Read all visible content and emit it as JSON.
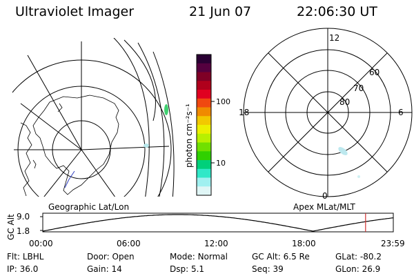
{
  "header": {
    "instrument": "Ultraviolet Imager",
    "date": "21 Jun 07",
    "time": "22:06:30 UT"
  },
  "colorbar": {
    "unit_label": "photon cm⁻²s⁻¹",
    "ticks": [
      "100",
      "10"
    ],
    "colors": [
      "#2a0033",
      "#55003f",
      "#7f0026",
      "#b0001c",
      "#e00020",
      "#f04810",
      "#f08a00",
      "#f2c800",
      "#ecf000",
      "#b8f000",
      "#70e000",
      "#30d000",
      "#00d07a",
      "#30e8c8",
      "#a0f0f0",
      "#e0f6f6"
    ]
  },
  "polar_plot": {
    "mlt_labels": [
      "12",
      "18",
      "6",
      "0"
    ],
    "lat_labels": [
      "60",
      "70",
      "80"
    ]
  },
  "map_labels": {
    "left": "Geographic Lat/Lon",
    "right": "Apex MLat/MLT"
  },
  "altitude_plot": {
    "ylabel": "GC Alt",
    "yticks": [
      "9.0",
      "1.8"
    ],
    "xticks": [
      "00:00",
      "06:00",
      "12:00",
      "18:00",
      "23:59"
    ],
    "marker_hour": 22.1
  },
  "footer": {
    "row1": [
      {
        "k": "Flt:",
        "v": "LBHL"
      },
      {
        "k": "Door:",
        "v": "Open"
      },
      {
        "k": "Mode:",
        "v": "Normal"
      },
      {
        "k": "GC Alt:",
        "v": "6.5 Re"
      },
      {
        "k": "GLat:",
        "v": "-80.2"
      }
    ],
    "row2": [
      {
        "k": "IP:",
        "v": "36.0"
      },
      {
        "k": "Gain:",
        "v": "14"
      },
      {
        "k": "Dsp:",
        "v": "5.1"
      },
      {
        "k": "Seq:",
        "v": "39"
      },
      {
        "k": "GLon:",
        "v": "26.9"
      }
    ]
  }
}
